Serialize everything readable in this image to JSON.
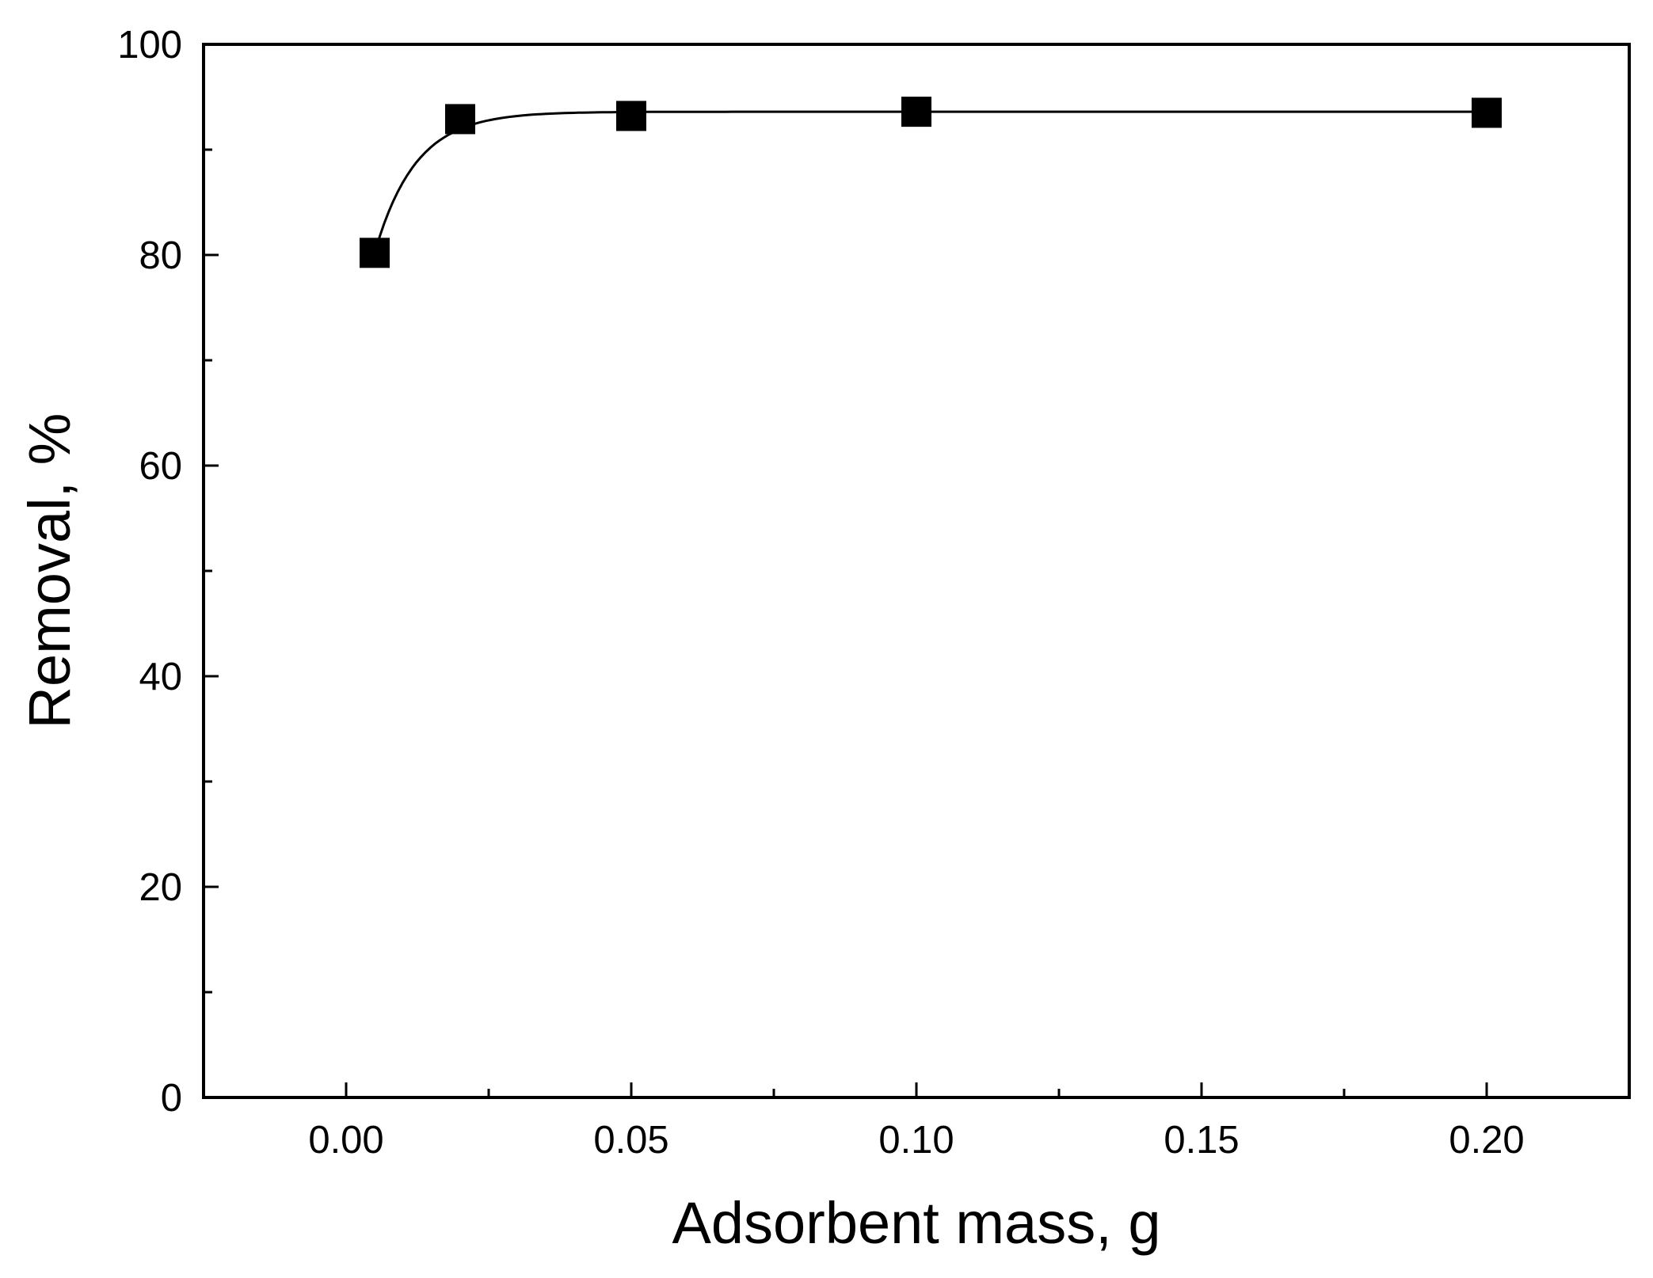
{
  "chart_data": {
    "type": "scatter",
    "title": "",
    "xlabel": "Adsorbent mass, g",
    "ylabel": "Removal, %",
    "xlim": [
      -0.025,
      0.225
    ],
    "ylim": [
      0,
      100
    ],
    "x_ticks": [
      0.0,
      0.05,
      0.1,
      0.15,
      0.2
    ],
    "x_tick_labels": [
      "0.00",
      "0.05",
      "0.10",
      "0.15",
      "0.20"
    ],
    "x_minor_ticks": [
      0.025,
      0.075,
      0.125,
      0.175
    ],
    "y_ticks": [
      0,
      20,
      40,
      60,
      80,
      100
    ],
    "y_tick_labels": [
      "0",
      "20",
      "40",
      "60",
      "80",
      "100"
    ],
    "y_minor_ticks": [
      10,
      30,
      50,
      70,
      90
    ],
    "grid": false,
    "marker": "square",
    "marker_color": "#000000",
    "series": [
      {
        "x": [
          0.005,
          0.02,
          0.05,
          0.1,
          0.2
        ],
        "y": [
          80.2,
          92.9,
          93.2,
          93.6,
          93.5
        ],
        "fit_line": true
      }
    ]
  }
}
